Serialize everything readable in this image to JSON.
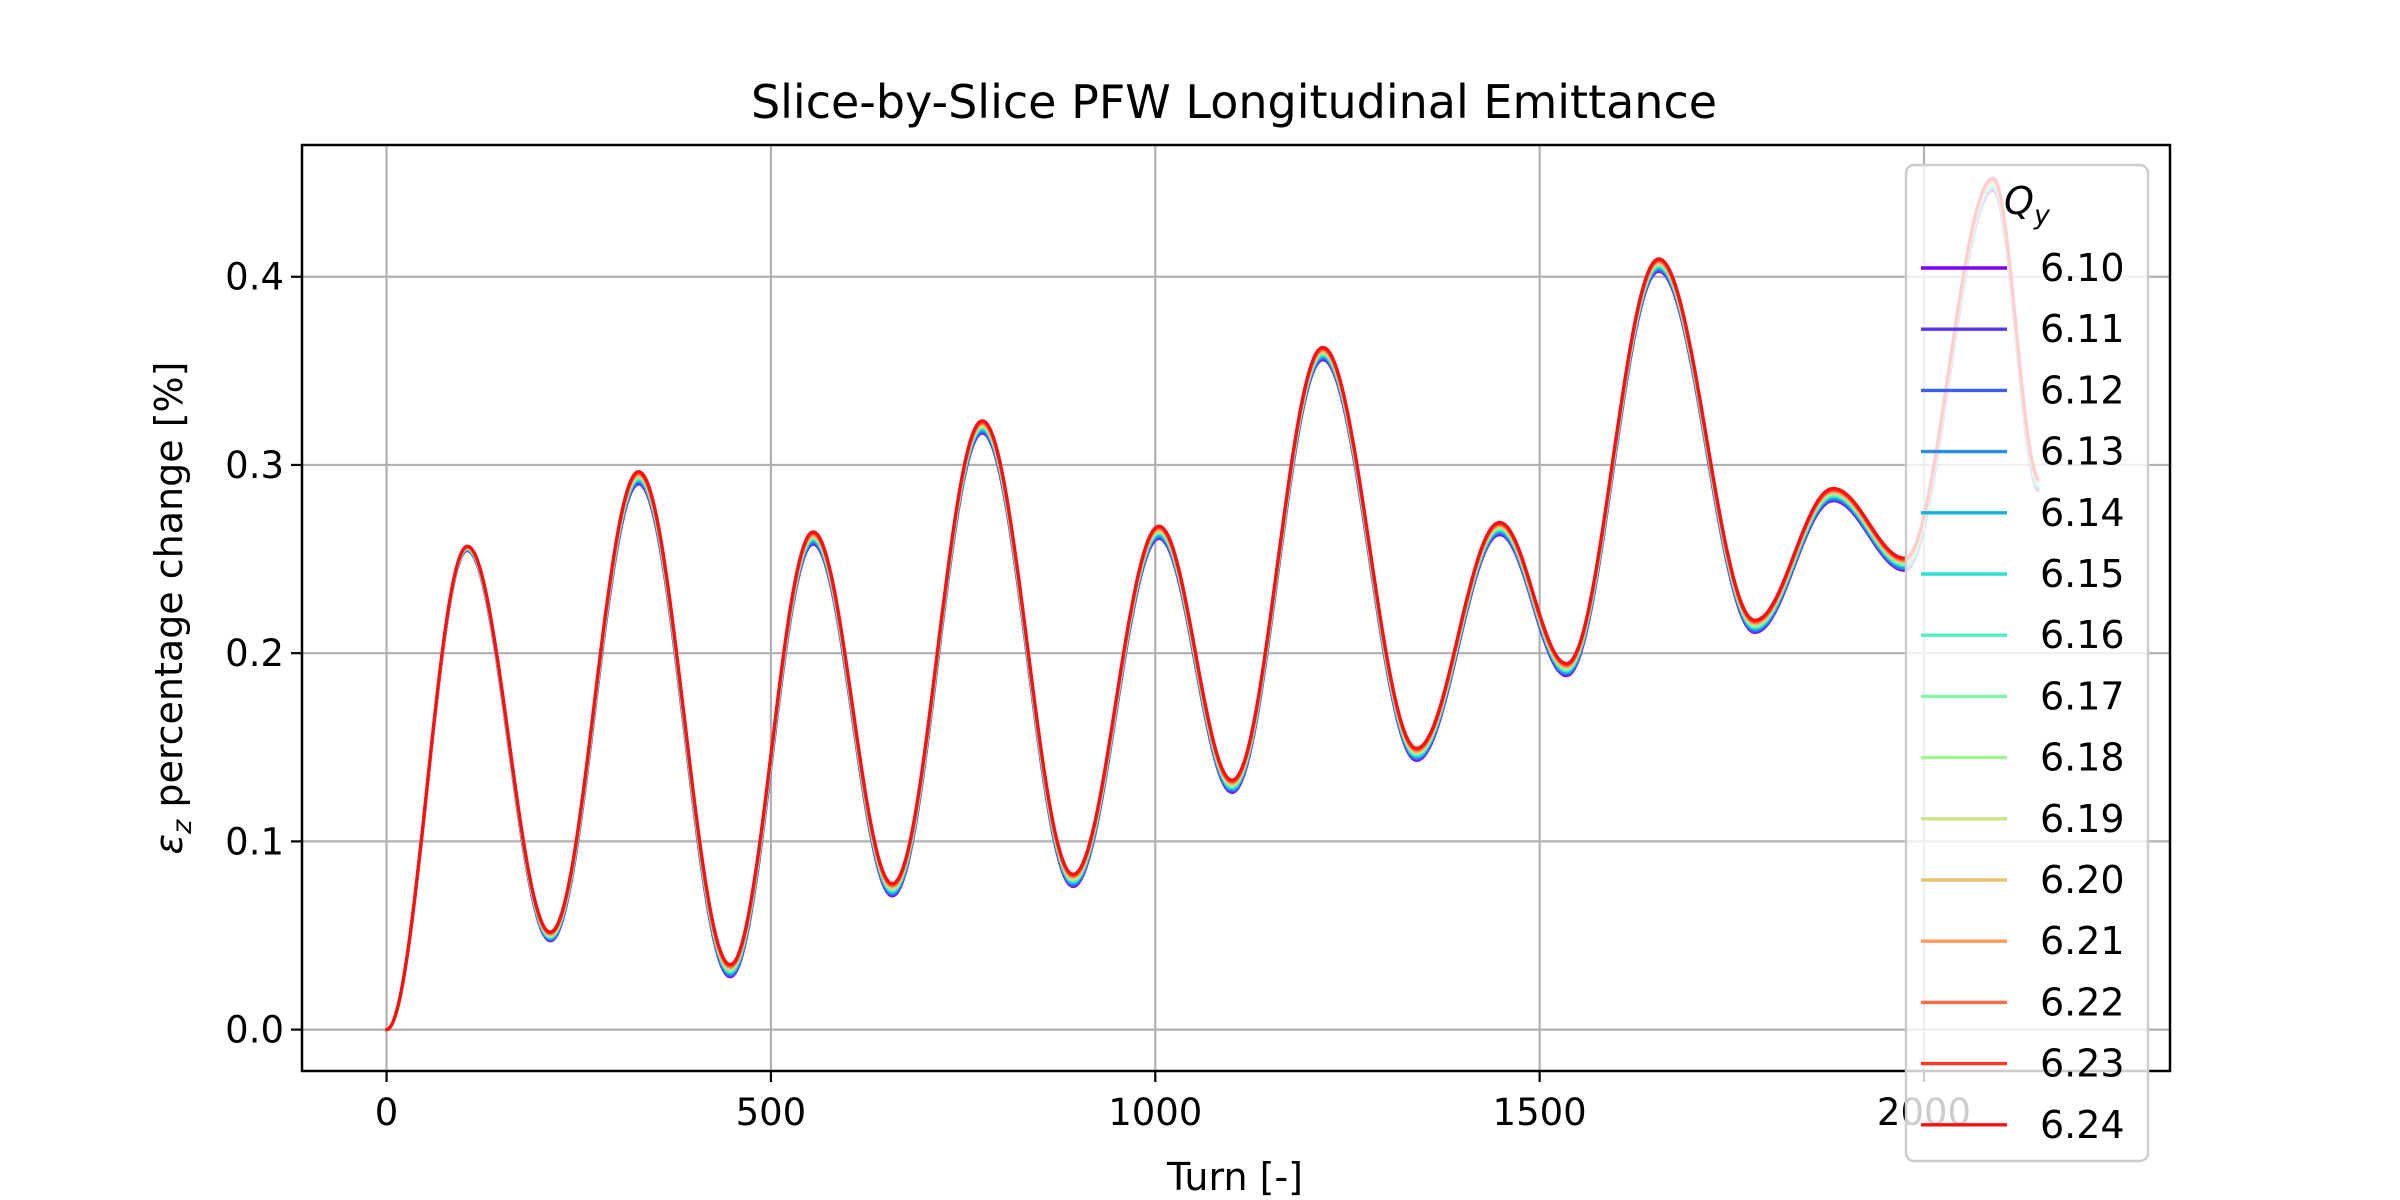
{
  "chart_data": {
    "type": "line",
    "title": "Slice-by-Slice PFW Longitudinal Emittance",
    "xlabel": "Turn [-]",
    "ylabel_symbol": "ε",
    "ylabel_subscript": "z",
    "ylabel_text": " percentage change [%]",
    "xlim": [
      -110,
      2320
    ],
    "ylim": [
      -0.022,
      0.47
    ],
    "xticks": [
      0,
      500,
      1000,
      1500,
      2000
    ],
    "yticks": [
      0.0,
      0.1,
      0.2,
      0.3,
      0.4
    ],
    "xtick_labels": [
      "0",
      "500",
      "1000",
      "1500",
      "2000"
    ],
    "ytick_labels": [
      "0.0",
      "0.1",
      "0.2",
      "0.3",
      "0.4"
    ],
    "grid": true,
    "legend": {
      "title_symbol": "Q",
      "title_subscript": "y",
      "placement": "right edge, overlapping plot"
    },
    "x_end": 2150,
    "extrema": [
      {
        "x": 0,
        "y": 0.0
      },
      {
        "x": 105,
        "y": 0.256
      },
      {
        "x": 213,
        "y": 0.05
      },
      {
        "x": 328,
        "y": 0.294
      },
      {
        "x": 447,
        "y": 0.032
      },
      {
        "x": 555,
        "y": 0.262
      },
      {
        "x": 658,
        "y": 0.075
      },
      {
        "x": 775,
        "y": 0.321
      },
      {
        "x": 893,
        "y": 0.08
      },
      {
        "x": 1005,
        "y": 0.265
      },
      {
        "x": 1100,
        "y": 0.13
      },
      {
        "x": 1218,
        "y": 0.36
      },
      {
        "x": 1340,
        "y": 0.147
      },
      {
        "x": 1448,
        "y": 0.267
      },
      {
        "x": 1535,
        "y": 0.192
      },
      {
        "x": 1655,
        "y": 0.407
      },
      {
        "x": 1780,
        "y": 0.215
      },
      {
        "x": 1882,
        "y": 0.285
      },
      {
        "x": 1975,
        "y": 0.248
      },
      {
        "x": 2090,
        "y": 0.45
      },
      {
        "x": 2150,
        "y": 0.29
      }
    ],
    "series": [
      {
        "name": "6.10",
        "color": "#8000ff",
        "offset": -0.004
      },
      {
        "name": "6.11",
        "color": "#5a35f5",
        "offset": -0.0035
      },
      {
        "name": "6.12",
        "color": "#3c60ee",
        "offset": -0.003
      },
      {
        "name": "6.13",
        "color": "#2a8ee6",
        "offset": -0.0025
      },
      {
        "name": "6.14",
        "color": "#12b2e0",
        "offset": -0.002
      },
      {
        "name": "6.15",
        "color": "#2ee0d0",
        "offset": -0.0015
      },
      {
        "name": "6.16",
        "color": "#50f0c0",
        "offset": -0.001
      },
      {
        "name": "6.17",
        "color": "#7ef8aa",
        "offset": -0.0005
      },
      {
        "name": "6.18",
        "color": "#9ef890",
        "offset": 0.0
      },
      {
        "name": "6.19",
        "color": "#c8e682",
        "offset": 0.0003
      },
      {
        "name": "6.20",
        "color": "#e8c470",
        "offset": 0.0006
      },
      {
        "name": "6.21",
        "color": "#ff9c5a",
        "offset": 0.001
      },
      {
        "name": "6.22",
        "color": "#ff6c44",
        "offset": 0.0015
      },
      {
        "name": "6.23",
        "color": "#ff3826",
        "offset": 0.002
      },
      {
        "name": "6.24",
        "color": "#ff1010",
        "offset": 0.0025
      }
    ]
  }
}
